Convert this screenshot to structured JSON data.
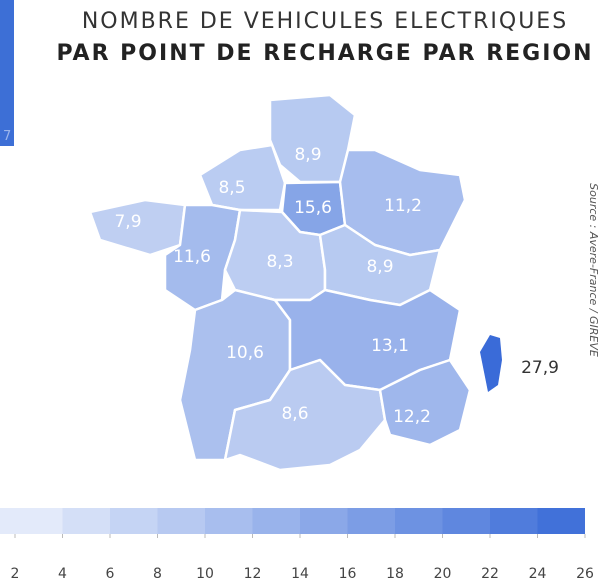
{
  "title": {
    "line1": "NOMBRE DE VEHICULES ELECTRIQUES",
    "line2": "PAR POINT DE RECHARGE PAR REGION"
  },
  "corner_label": "7",
  "source": "Source : Avere-France / GIREVE",
  "regions": [
    {
      "value": 8.9,
      "label": "8,9"
    },
    {
      "value": 8.5,
      "label": "8,5"
    },
    {
      "value": 15.6,
      "label": "15,6"
    },
    {
      "value": 11.2,
      "label": "11,2"
    },
    {
      "value": 7.9,
      "label": "7,9"
    },
    {
      "value": 11.6,
      "label": "11,6"
    },
    {
      "value": 8.3,
      "label": "8,3"
    },
    {
      "value": 8.9,
      "label": "8,9"
    },
    {
      "value": 10.6,
      "label": "10,6"
    },
    {
      "value": 13.1,
      "label": "13,1"
    },
    {
      "value": 8.6,
      "label": "8,6"
    },
    {
      "value": 12.2,
      "label": "12,2"
    },
    {
      "value": 27.9,
      "label": "27,9"
    }
  ],
  "legend": {
    "ticks": [
      2,
      4,
      6,
      8,
      10,
      12,
      14,
      16,
      18,
      20,
      22,
      24,
      26
    ],
    "colors": [
      "#eaf0fb",
      "#3a6bd8"
    ]
  }
}
